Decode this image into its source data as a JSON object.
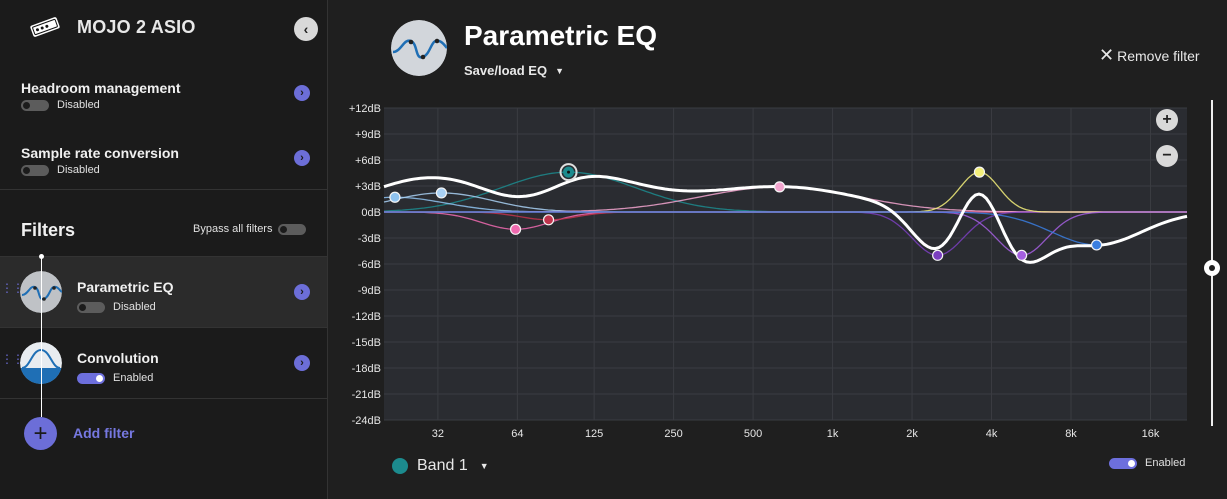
{
  "sidebar": {
    "device_title": "MOJO 2 ASIO",
    "settings": [
      {
        "title": "Headroom management",
        "status": "Disabled",
        "enabled": false
      },
      {
        "title": "Sample rate conversion",
        "status": "Disabled",
        "enabled": false
      }
    ],
    "filters_heading": "Filters",
    "bypass_label": "Bypass all filters",
    "filters": [
      {
        "name": "Parametric EQ",
        "status": "Disabled",
        "enabled": false
      },
      {
        "name": "Convolution",
        "status": "Enabled",
        "enabled": true
      }
    ],
    "add_filter_label": "Add filter"
  },
  "main": {
    "title": "Parametric EQ",
    "save_load_label": "Save/load EQ",
    "remove_filter_label": "Remove filter",
    "band_select_label": "Band 1",
    "band_enabled_label": "Enabled",
    "band_color": "#1c8b8e",
    "accent": "#6c6ed8",
    "zoom_in": "+",
    "zoom_out": "−"
  },
  "chart_data": {
    "type": "line",
    "x_scale": "log",
    "xlim": [
      20,
      22000
    ],
    "ylim": [
      -24,
      12
    ],
    "grid": true,
    "x_ticks": [
      "32",
      "64",
      "125",
      "250",
      "500",
      "1k",
      "2k",
      "4k",
      "8k",
      "16k"
    ],
    "y_ticks": [
      "+12dB",
      "+9dB",
      "+6dB",
      "+3dB",
      "0dB",
      "-3dB",
      "-6dB",
      "-9dB",
      "-12dB",
      "-15dB",
      "-18dB",
      "-21dB",
      "-24dB"
    ],
    "bands": [
      {
        "color": "#1c8b8e",
        "freq": 100,
        "gain": 4.6,
        "selected": true
      },
      {
        "color": "#8fc3f0",
        "freq": 22,
        "gain": 1.7
      },
      {
        "color": "#a9d1f5",
        "freq": 33,
        "gain": 2.2
      },
      {
        "color": "#f06ab0",
        "freq": 63,
        "gain": -2.0
      },
      {
        "color": "#c0344d",
        "freq": 84,
        "gain": -0.9
      },
      {
        "color": "#f3a5cf",
        "freq": 630,
        "gain": 2.9
      },
      {
        "color": "#7b3fc0",
        "freq": 2500,
        "gain": -5.0
      },
      {
        "color": "#f4f07a",
        "freq": 3600,
        "gain": 4.6
      },
      {
        "color": "#a45fe0",
        "freq": 5200,
        "gain": -5.0
      },
      {
        "color": "#3a7ee0",
        "freq": 10000,
        "gain": -3.8
      }
    ]
  }
}
